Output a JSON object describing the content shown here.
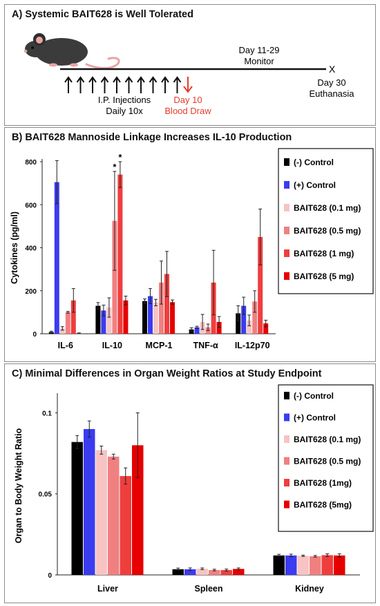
{
  "panelA": {
    "title": "A) Systemic BAIT628 is Well Tolerated",
    "monitor_line1": "Day 11-29",
    "monitor_line2": "Monitor",
    "injections_line1": "I.P. Injections",
    "injections_line2": "Daily 10x",
    "blood_line1": "Day 10",
    "blood_line2": "Blood Draw",
    "euth_line1": "Day 30",
    "euth_line2": "Euthanasia",
    "end_marker": "X",
    "injection_arrow_count": 10,
    "colors": {
      "timeline": "#111111",
      "blood_draw": "#e83a2d",
      "mouse_body": "#3b3b3b",
      "mouse_pink": "#e8a4a4"
    }
  },
  "panelB": {
    "title": "B) BAIT628 Mannoside Linkage Increases IL-10 Production"
  },
  "panelC": {
    "title": "C) Minimal Differences in Organ Weight Ratios at Study Endpoint"
  },
  "chart_data": [
    {
      "type": "bar",
      "title": "",
      "ylabel": "Cytokines (pg/ml)",
      "xlabel": "",
      "ylim": [
        0,
        800
      ],
      "yticks": [
        "0",
        "200",
        "400",
        "600",
        "800"
      ],
      "categories": [
        "IL-6",
        "IL-10",
        "MCP-1",
        "TNF-α",
        "IL-12p70"
      ],
      "legend_position": "right",
      "grid": false,
      "series": [
        {
          "name": "(-) Control",
          "color": "#000000",
          "values": [
            8,
            130,
            152,
            20,
            95
          ],
          "errors": [
            4,
            15,
            10,
            8,
            35
          ]
        },
        {
          "name": "(+) Control",
          "color": "#3b3bf0",
          "values": [
            705,
            108,
            175,
            30,
            130
          ],
          "errors": [
            100,
            25,
            35,
            5,
            40
          ]
        },
        {
          "name": "BAIT628 (0.1 mg)",
          "color": "#f7c3c3",
          "values": [
            25,
            122,
            145,
            55,
            62
          ],
          "errors": [
            8,
            45,
            15,
            35,
            25
          ]
        },
        {
          "name": "BAIT628 (0.5 mg)",
          "color": "#f08080",
          "values": [
            100,
            525,
            238,
            30,
            150
          ],
          "errors": [
            4,
            230,
            100,
            15,
            50
          ]
        },
        {
          "name": "BAIT628 (1 mg)",
          "color": "#ef3e3e",
          "values": [
            155,
            740,
            278,
            238,
            450
          ],
          "errors": [
            55,
            60,
            105,
            150,
            130
          ]
        },
        {
          "name": "BAIT628 (5 mg)",
          "color": "#e60000",
          "values": [
            2,
            155,
            147,
            55,
            48
          ],
          "errors": [
            2,
            20,
            10,
            25,
            15
          ]
        }
      ],
      "annotations": [
        {
          "text": "*",
          "category": "IL-10",
          "series": "BAIT628 (0.5 mg)"
        },
        {
          "text": "*",
          "category": "IL-10",
          "series": "BAIT628 (1 mg)"
        }
      ]
    },
    {
      "type": "bar",
      "title": "",
      "ylabel": "Organ to Body Weight Ratio",
      "xlabel": "",
      "ylim": [
        0,
        0.11
      ],
      "yticks": [
        "0",
        "0.05",
        "0.1"
      ],
      "ytick_values": [
        0,
        0.05,
        0.1
      ],
      "categories": [
        "Liver",
        "Spleen",
        "Kidney"
      ],
      "legend_position": "right",
      "grid": false,
      "series": [
        {
          "name": "(-) Control",
          "color": "#000000",
          "values": [
            0.082,
            0.0035,
            0.012
          ],
          "errors": [
            0.004,
            0.0007,
            0.0007
          ]
        },
        {
          "name": "(+) Control",
          "color": "#3b3bf0",
          "values": [
            0.09,
            0.0035,
            0.012
          ],
          "errors": [
            0.005,
            0.0008,
            0.0008
          ]
        },
        {
          "name": "BAIT628 (0.1 mg)",
          "color": "#f7c3c3",
          "values": [
            0.077,
            0.0038,
            0.0118
          ],
          "errors": [
            0.0025,
            0.0005,
            0.0004
          ]
        },
        {
          "name": "BAIT628 (0.5 mg)",
          "color": "#f08080",
          "values": [
            0.073,
            0.003,
            0.0115
          ],
          "errors": [
            0.0015,
            0.0005,
            0.0005
          ]
        },
        {
          "name": "BAIT628 (1mg)",
          "color": "#ef3e3e",
          "values": [
            0.061,
            0.003,
            0.0122
          ],
          "errors": [
            0.005,
            0.0006,
            0.0008
          ]
        },
        {
          "name": "BAIT628 (5mg)",
          "color": "#e60000",
          "values": [
            0.08,
            0.0037,
            0.012
          ],
          "errors": [
            0.02,
            0.0006,
            0.001
          ]
        }
      ]
    }
  ]
}
